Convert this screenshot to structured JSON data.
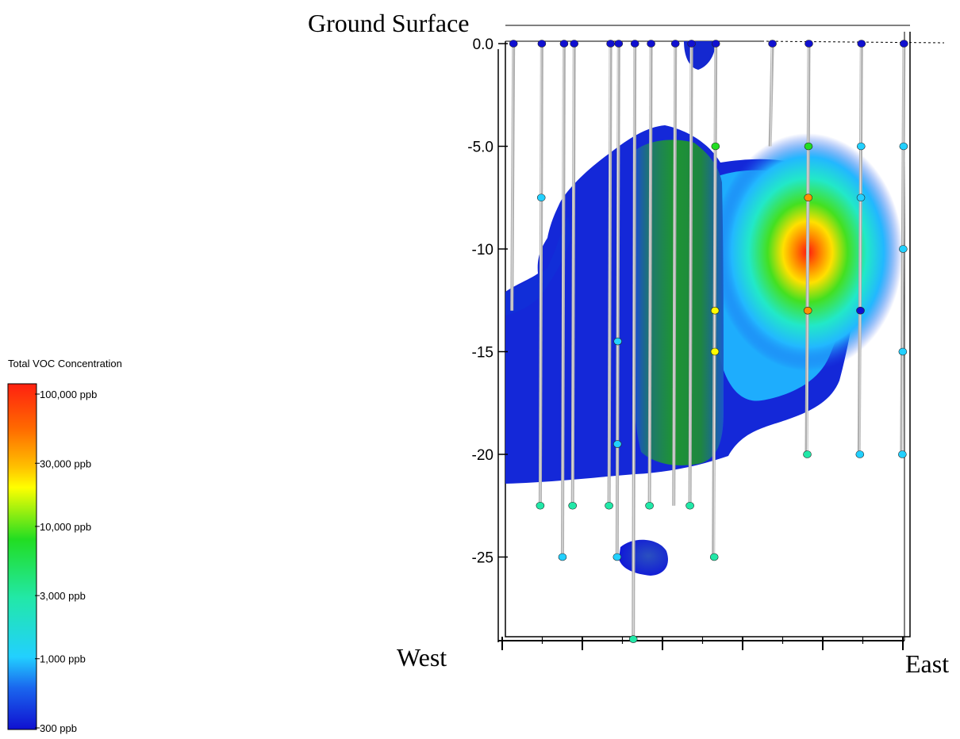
{
  "chart_data": {
    "type": "heatmap",
    "title": "",
    "top_label": "Ground Surface",
    "x_left_label": "West",
    "x_right_label": "East",
    "y_ticks": [
      "0.0",
      "-5.0",
      "-10",
      "-15",
      "-20",
      "-25"
    ],
    "y_tick_values": [
      0,
      -5,
      -10,
      -15,
      -20,
      -25
    ],
    "ylim": [
      -29,
      0
    ],
    "legend": {
      "title": "Total VOC Concentration",
      "scale": "log",
      "stops": [
        {
          "label": "100,000 ppb",
          "value": 100000
        },
        {
          "label": "30,000 ppb",
          "value": 30000
        },
        {
          "label": "10,000 ppb",
          "value": 10000
        },
        {
          "label": "3,000 ppb",
          "value": 3000
        },
        {
          "label": "1,000 ppb",
          "value": 1000
        },
        {
          "label": "300 ppb",
          "value": 300
        }
      ],
      "colors": [
        "#e8201a",
        "#ff8c00",
        "#ffff00",
        "#22cc22",
        "#22e8b0",
        "#22c8ff",
        "#1f4fe0",
        "#1010d0"
      ]
    },
    "wells": [
      {
        "x": 0.02,
        "bottom": -13,
        "samples": [
          {
            "depth": 0,
            "c": 300
          }
        ]
      },
      {
        "x": 0.09,
        "bottom": -22.5,
        "samples": [
          {
            "depth": 0,
            "c": 300
          },
          {
            "depth": -7.5,
            "c": 1500
          },
          {
            "depth": -22.5,
            "c": 5000
          }
        ]
      },
      {
        "x": 0.145,
        "bottom": -25,
        "samples": [
          {
            "depth": 0,
            "c": 300
          },
          {
            "depth": -25,
            "c": 1500
          }
        ]
      },
      {
        "x": 0.17,
        "bottom": -22.5,
        "samples": [
          {
            "depth": 0,
            "c": 300
          },
          {
            "depth": -22.5,
            "c": 2500
          }
        ]
      },
      {
        "x": 0.26,
        "bottom": -22.5,
        "samples": [
          {
            "depth": 0,
            "c": 300
          },
          {
            "depth": -22.5,
            "c": 3500
          }
        ]
      },
      {
        "x": 0.28,
        "bottom": -25,
        "samples": [
          {
            "depth": 0,
            "c": 300
          },
          {
            "depth": -14.5,
            "c": 1500
          },
          {
            "depth": -19.5,
            "c": 1500
          },
          {
            "depth": -25,
            "c": 1500
          }
        ]
      },
      {
        "x": 0.32,
        "bottom": -29,
        "samples": [
          {
            "depth": 0,
            "c": 300
          },
          {
            "depth": -29,
            "c": 4000
          }
        ]
      },
      {
        "x": 0.36,
        "bottom": -22.5,
        "samples": [
          {
            "depth": 0,
            "c": 300
          },
          {
            "depth": -22.5,
            "c": 2500
          }
        ]
      },
      {
        "x": 0.42,
        "bottom": -22.5,
        "samples": [
          {
            "depth": 0,
            "c": 300
          }
        ]
      },
      {
        "x": 0.46,
        "bottom": -22.5,
        "samples": [
          {
            "depth": 0,
            "c": 300
          },
          {
            "depth": -22.5,
            "c": 5000
          }
        ]
      },
      {
        "x": 0.52,
        "bottom": -25,
        "samples": [
          {
            "depth": 0,
            "c": 300
          },
          {
            "depth": -5,
            "c": 6000
          },
          {
            "depth": -13,
            "c": 20000
          },
          {
            "depth": -15,
            "c": 25000
          },
          {
            "depth": -25,
            "c": 5000
          }
        ]
      },
      {
        "x": 0.66,
        "bottom": -5,
        "samples": [
          {
            "depth": 0,
            "c": 300
          }
        ]
      },
      {
        "x": 0.75,
        "bottom": -20,
        "samples": [
          {
            "depth": 0,
            "c": 300
          },
          {
            "depth": -5,
            "c": 6000
          },
          {
            "depth": -7.5,
            "c": 45000
          },
          {
            "depth": -13,
            "c": 50000
          },
          {
            "depth": -20,
            "c": 2500
          }
        ]
      },
      {
        "x": 0.88,
        "bottom": -20,
        "samples": [
          {
            "depth": 0,
            "c": 300
          },
          {
            "depth": -5,
            "c": 1500
          },
          {
            "depth": -7.5,
            "c": 1500
          },
          {
            "depth": -13,
            "c": 300
          },
          {
            "depth": -20,
            "c": 1500
          }
        ]
      },
      {
        "x": 0.985,
        "bottom": -20,
        "samples": [
          {
            "depth": 0,
            "c": 300
          },
          {
            "depth": -5,
            "c": 1500
          },
          {
            "depth": -10,
            "c": 1500
          },
          {
            "depth": -15,
            "c": 1500
          },
          {
            "depth": -20,
            "c": 1500
          }
        ]
      }
    ],
    "hotspot": {
      "x": 0.76,
      "depth": -10,
      "c": 100000
    }
  }
}
